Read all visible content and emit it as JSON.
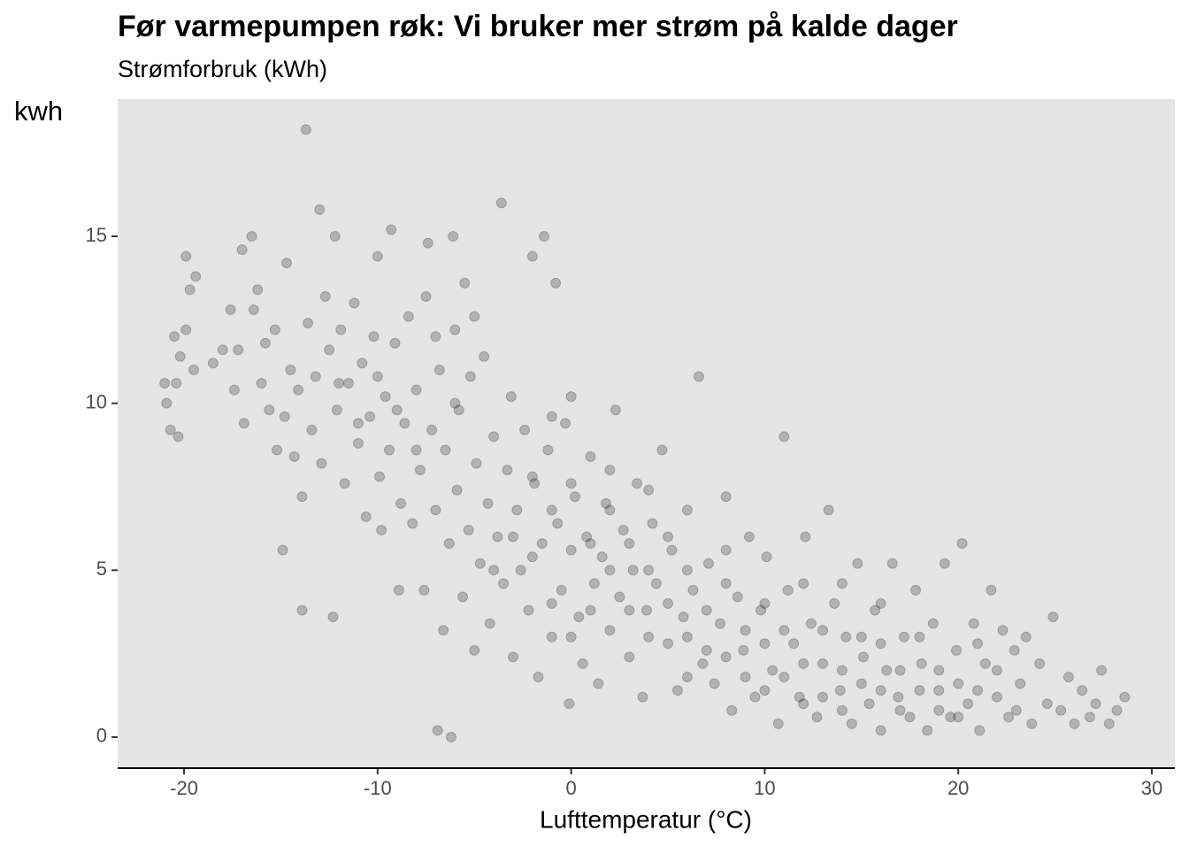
{
  "chart_data": {
    "type": "scatter",
    "title": "Før varmepumpen røk: Vi bruker mer strøm på kalde dager",
    "subtitle": "Strømforbruk (kWh)",
    "y_label": "kwh",
    "x_label": "Lufttemperatur (°C)",
    "color": "#000000",
    "alpha": 0.22,
    "background": "#e5e5e5",
    "xlim": [
      -23.43,
      31.19
    ],
    "ylim": [
      -0.93,
      19.11
    ],
    "xticks": [
      -20,
      -10,
      0,
      10,
      20,
      30
    ],
    "yticks": [
      0,
      5,
      10,
      15
    ],
    "x": [
      -21,
      -20.9,
      -20.7,
      -20.3,
      -20.4,
      -20.5,
      -20.2,
      -19.9,
      -19.9,
      -19.7,
      -19.5,
      -19.4,
      -18.5,
      -18,
      -17.6,
      -17.4,
      -17.2,
      -17,
      -16.9,
      -16.5,
      -16.4,
      -16.2,
      -16,
      -15.8,
      -15.6,
      -15.3,
      -15.2,
      -14.9,
      -14.8,
      -14.7,
      -14.5,
      -14.3,
      -14.1,
      -13.9,
      -13.9,
      -13.7,
      -13.6,
      -13.4,
      -13.2,
      -13,
      -12.9,
      -12.7,
      -12.5,
      -12.3,
      -12.2,
      -12.1,
      -11.9,
      -11.7,
      -11.5,
      -11.2,
      -11,
      -10.8,
      -10.6,
      -10.4,
      -10.2,
      -10,
      -9.9,
      -9.8,
      -9.6,
      -9.4,
      -9.3,
      -9.1,
      -8.9,
      -8.8,
      -8.6,
      -8.4,
      -8.2,
      -8,
      -7.8,
      -7.6,
      -7.5,
      -7.4,
      -7.2,
      -7,
      -6.9,
      -6.8,
      -6.6,
      -6.5,
      -6.3,
      -6.2,
      -6.1,
      -6,
      -5.9,
      -5.8,
      -5.6,
      -5.5,
      -5.3,
      -5.2,
      -5,
      -4.9,
      -4.7,
      -4.5,
      -4.3,
      -4.2,
      -4,
      -3.8,
      -3.6,
      -3.5,
      -3.3,
      -3.1,
      -3,
      -2.8,
      -2.6,
      -2.4,
      -2.2,
      -2,
      -1.9,
      -1.7,
      -1.5,
      -1.4,
      -1.2,
      -1,
      -0.8,
      -0.7,
      -0.5,
      -0.3,
      -0.1,
      0,
      0.2,
      0.4,
      0.6,
      0.8,
      1,
      1.2,
      1.4,
      1.6,
      1.8,
      2,
      2.3,
      2.5,
      2.7,
      3,
      3.2,
      3.4,
      3.7,
      3.9,
      4.2,
      4.4,
      4.7,
      5,
      5.2,
      5.5,
      5.8,
      6,
      6.3,
      6.6,
      6.8,
      7.1,
      7.4,
      7.7,
      8,
      8.3,
      8.6,
      8.9,
      9.2,
      9.5,
      9.8,
      10.1,
      10.4,
      10.7,
      11,
      11.2,
      11.5,
      11.8,
      12.1,
      12.4,
      12.7,
      13,
      13.3,
      13.6,
      13.9,
      14.2,
      14.5,
      14.8,
      15.1,
      15.4,
      15.7,
      16,
      16.3,
      16.6,
      16.9,
      17.2,
      17.5,
      17.8,
      18.1,
      18.4,
      18.7,
      19,
      19.3,
      19.6,
      19.9,
      20.2,
      20.5,
      20.8,
      21.1,
      21.4,
      21.7,
      22,
      22.3,
      22.6,
      22.9,
      23.2,
      23.5,
      23.8,
      24.2,
      24.6,
      24.9,
      25.3,
      25.7,
      26,
      26.4,
      26.8,
      27.1,
      27.4,
      27.8,
      28.2,
      28.6,
      -4,
      -3,
      -2,
      -1,
      -1,
      0,
      0,
      1,
      1,
      2,
      2,
      3,
      3,
      4,
      4,
      5,
      5,
      6,
      6,
      7,
      7,
      8,
      8,
      9,
      9,
      10,
      10,
      11,
      11,
      12,
      12,
      13,
      13,
      14,
      14,
      15,
      15,
      16,
      16,
      17,
      17,
      18,
      18,
      19,
      19,
      20,
      20,
      21,
      21,
      22,
      23,
      -2,
      -1,
      0,
      2,
      4,
      6,
      8,
      10,
      12,
      14,
      16,
      -6,
      -7,
      -5,
      -8,
      -10,
      -11,
      -12,
      -9
    ],
    "y": [
      10.6,
      10,
      9.2,
      9,
      10.6,
      12,
      11.4,
      12.2,
      14.4,
      13.4,
      11,
      13.8,
      11.2,
      11.6,
      12.8,
      10.4,
      11.6,
      14.6,
      9.4,
      15,
      12.8,
      13.4,
      10.6,
      11.8,
      9.8,
      12.2,
      8.6,
      5.6,
      9.6,
      14.2,
      11,
      8.4,
      10.4,
      3.8,
      7.2,
      18.2,
      12.4,
      9.2,
      10.8,
      15.8,
      8.2,
      13.2,
      11.6,
      3.6,
      15,
      9.8,
      12.2,
      7.6,
      10.6,
      13,
      8.8,
      11.2,
      6.6,
      9.6,
      12,
      14.4,
      7.8,
      6.2,
      10.2,
      8.6,
      15.2,
      11.8,
      4.4,
      7,
      9.4,
      12.6,
      6.4,
      10.4,
      8,
      4.4,
      13.2,
      14.8,
      9.2,
      6.8,
      0.2,
      11,
      3.2,
      8.6,
      5.8,
      0,
      15,
      12.2,
      7.4,
      9.8,
      4.2,
      13.6,
      6.2,
      10.8,
      2.6,
      8.2,
      5.2,
      11.4,
      7,
      3.4,
      9,
      6,
      16,
      4.6,
      8,
      10.2,
      2.4,
      6.8,
      5,
      9.2,
      3.8,
      14.4,
      7.6,
      1.8,
      5.8,
      15,
      8.6,
      3,
      13.6,
      6.4,
      4.4,
      9.4,
      1,
      5.6,
      7.2,
      3.6,
      2.2,
      6,
      8.4,
      4.6,
      1.6,
      5.4,
      7,
      3.2,
      9.8,
      4.2,
      6.2,
      2.4,
      5,
      7.6,
      1.2,
      3.8,
      6.4,
      4.6,
      8.6,
      2.8,
      5.6,
      1.4,
      3.6,
      6.8,
      4.4,
      10.8,
      2.2,
      5.2,
      1.6,
      3.4,
      7.2,
      0.8,
      4.2,
      2.6,
      6,
      1.2,
      3.8,
      5.4,
      2,
      0.4,
      9,
      4.4,
      2.8,
      1.2,
      6,
      3.4,
      0.6,
      2.2,
      6.8,
      4,
      1.4,
      3,
      0.4,
      5.2,
      2.4,
      1,
      3.8,
      0.2,
      2,
      5.2,
      1.2,
      3,
      0.6,
      4.4,
      2.2,
      0.2,
      3.4,
      1.4,
      5.2,
      0.6,
      2.6,
      5.8,
      1,
      3.4,
      0.2,
      2.2,
      4.4,
      1.2,
      3.2,
      0.6,
      2.6,
      1.6,
      3,
      0.4,
      2.2,
      1,
      3.6,
      0.8,
      1.8,
      0.4,
      1.4,
      0.6,
      1,
      2,
      0.4,
      0.8,
      1.2,
      5,
      6,
      5.4,
      6.8,
      4,
      3,
      7.6,
      5.8,
      3.8,
      5,
      6.8,
      3.8,
      5.8,
      3,
      5,
      4,
      6,
      3,
      1.8,
      3.8,
      2.6,
      2.4,
      4.6,
      3.2,
      1.8,
      2.8,
      1.4,
      3.2,
      1.8,
      2.2,
      1,
      3.2,
      1.2,
      2,
      0.8,
      1.6,
      3,
      1.4,
      2.8,
      2,
      0.8,
      1.4,
      3,
      0.8,
      2,
      1.6,
      0.6,
      1.4,
      2.8,
      2,
      0.8,
      7.8,
      9.6,
      10.2,
      8,
      7.4,
      5,
      5.6,
      4,
      4.6,
      4.6,
      4,
      10,
      12,
      12.6,
      8.6,
      10.8,
      9.4,
      10.6,
      9.8
    ]
  }
}
